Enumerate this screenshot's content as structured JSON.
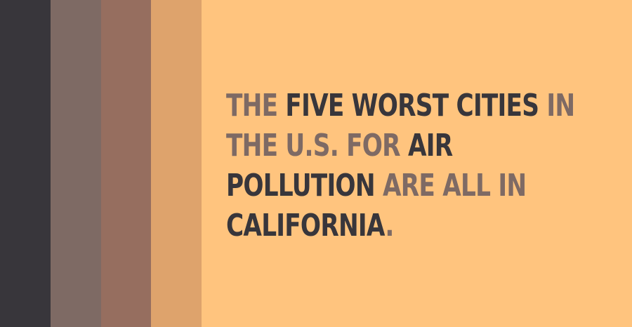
{
  "colors": {
    "background": "#FFC47E",
    "stripes": [
      "#38363B",
      "#7E6A64",
      "#966E5F",
      "#DEA36C"
    ],
    "muted_text": "#7E6A64",
    "strong_text": "#38363B"
  },
  "fact": {
    "lines": [
      [
        {
          "text": "THE ",
          "tone": "muted"
        },
        {
          "text": "FIVE WORST CITIES",
          "tone": "strong"
        },
        {
          "text": " IN",
          "tone": "muted"
        }
      ],
      [
        {
          "text": "THE U.S. FOR ",
          "tone": "muted"
        },
        {
          "text": "AIR",
          "tone": "strong"
        }
      ],
      [
        {
          "text": "POLLUTION",
          "tone": "strong"
        },
        {
          "text": " ARE ALL IN",
          "tone": "muted"
        }
      ],
      [
        {
          "text": "CALIFORNIA",
          "tone": "strong"
        },
        {
          "text": ".",
          "tone": "muted"
        }
      ]
    ]
  }
}
